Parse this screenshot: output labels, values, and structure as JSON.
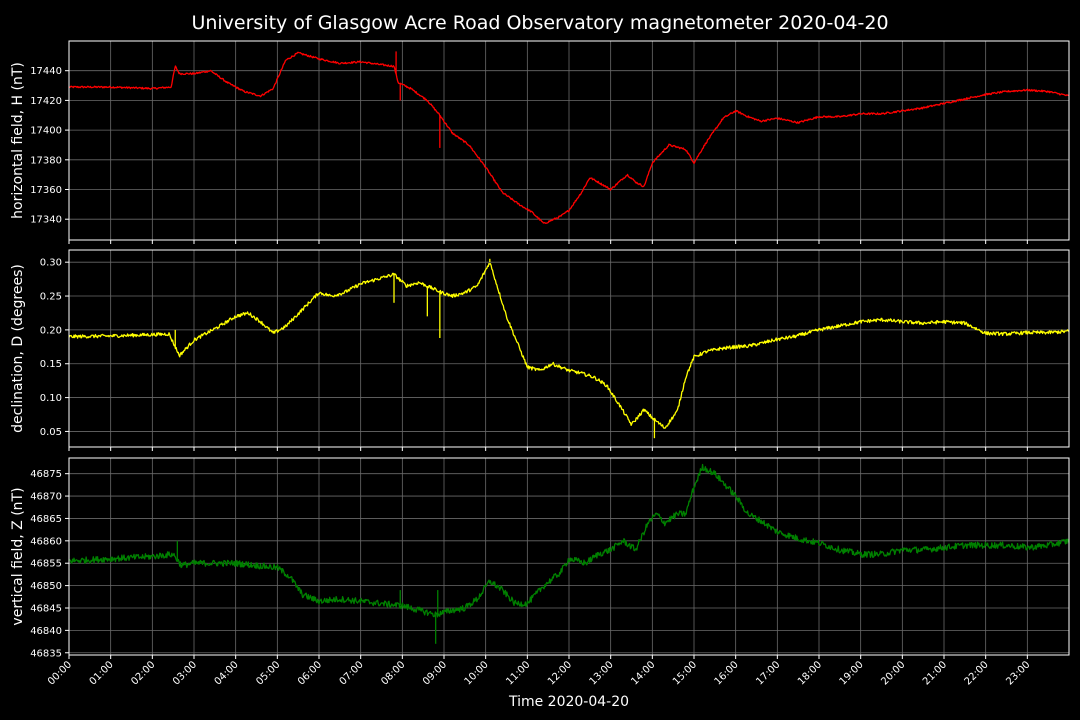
{
  "chart_data": {
    "title": "University of Glasgow Acre Road Observatory magnetometer 2020-04-20",
    "xlabel": "Time 2020-04-20",
    "type": "line",
    "grid": true,
    "x_ticks": [
      "00:00",
      "01:00",
      "02:00",
      "03:00",
      "04:00",
      "05:00",
      "06:00",
      "07:00",
      "08:00",
      "09:00",
      "10:00",
      "11:00",
      "12:00",
      "13:00",
      "14:00",
      "15:00",
      "16:00",
      "17:00",
      "18:00",
      "19:00",
      "20:00",
      "21:00",
      "22:00",
      "23:00"
    ],
    "xlim": [
      0,
      24
    ],
    "panels": [
      {
        "ylabel": "horizontal field, H (nT)",
        "color": "#ff0000",
        "ylim": [
          17326,
          17460
        ],
        "yticks": [
          17340,
          17360,
          17380,
          17400,
          17420,
          17440
        ],
        "ytick_labels": [
          "17340",
          "17360",
          "17380",
          "17400",
          "17420",
          "17440"
        ],
        "noise": 0.6,
        "spikes": [
          [
            7.85,
            17453
          ],
          [
            7.95,
            17420
          ],
          [
            8.9,
            17388
          ]
        ],
        "x": [
          0,
          1,
          2,
          2.45,
          2.55,
          2.65,
          3,
          3.4,
          3.8,
          4.2,
          4.6,
          4.9,
          5.2,
          5.5,
          6,
          6.5,
          7,
          7.5,
          7.8,
          7.9,
          8.2,
          8.6,
          8.9,
          9.2,
          9.6,
          10,
          10.4,
          10.8,
          11.1,
          11.4,
          11.8,
          12,
          12.3,
          12.5,
          12.7,
          13,
          13.4,
          13.6,
          13.8,
          14,
          14.4,
          14.8,
          15,
          15.3,
          15.7,
          16,
          16.3,
          16.6,
          17,
          17.5,
          18,
          18.5,
          19,
          19.5,
          20,
          20.5,
          21,
          21.5,
          22,
          22.5,
          23,
          23.5,
          24
        ],
        "y": [
          17429,
          17429,
          17428,
          17429,
          17443,
          17438,
          17438,
          17440,
          17432,
          17426,
          17423,
          17428,
          17447,
          17452,
          17448,
          17445,
          17446,
          17444,
          17443,
          17432,
          17428,
          17420,
          17410,
          17398,
          17390,
          17375,
          17358,
          17350,
          17345,
          17337,
          17342,
          17346,
          17358,
          17368,
          17365,
          17360,
          17370,
          17365,
          17362,
          17378,
          17390,
          17387,
          17378,
          17392,
          17408,
          17413,
          17409,
          17406,
          17408,
          17405,
          17409,
          17409,
          17411,
          17411,
          17413,
          17415,
          17418,
          17421,
          17424,
          17426,
          17427,
          17426,
          17423
        ]
      },
      {
        "ylabel": "declination, D (degrees)",
        "color": "#ffff00",
        "ylim": [
          0.027,
          0.318
        ],
        "yticks": [
          0.05,
          0.1,
          0.15,
          0.2,
          0.25,
          0.3
        ],
        "ytick_labels": [
          "0.05",
          "0.10",
          "0.15",
          "0.20",
          "0.25",
          "0.30"
        ],
        "noise": 0.0025,
        "spikes": [
          [
            2.55,
            0.2
          ],
          [
            7.8,
            0.24
          ],
          [
            8.6,
            0.22
          ],
          [
            8.9,
            0.188
          ],
          [
            10.1,
            0.305
          ],
          [
            14.05,
            0.04
          ]
        ],
        "x": [
          0,
          1,
          2,
          2.4,
          2.65,
          3,
          3.3,
          3.6,
          4,
          4.3,
          4.6,
          4.9,
          5.2,
          5.6,
          6,
          6.3,
          6.6,
          7,
          7.4,
          7.8,
          8.1,
          8.4,
          8.7,
          8.95,
          9.2,
          9.5,
          9.8,
          10.1,
          10.5,
          10.8,
          11,
          11.3,
          11.6,
          12,
          12.3,
          12.6,
          12.9,
          13.2,
          13.5,
          13.8,
          14,
          14.3,
          14.6,
          14.8,
          15,
          15.3,
          15.6,
          16,
          16.3,
          16.6,
          17,
          17.4,
          18,
          18.5,
          19,
          19.5,
          20,
          20.5,
          21,
          21.5,
          22,
          22.5,
          23,
          23.5,
          24
        ],
        "y": [
          0.19,
          0.191,
          0.193,
          0.194,
          0.162,
          0.185,
          0.195,
          0.205,
          0.22,
          0.225,
          0.212,
          0.195,
          0.205,
          0.23,
          0.255,
          0.25,
          0.255,
          0.268,
          0.275,
          0.282,
          0.265,
          0.27,
          0.262,
          0.255,
          0.25,
          0.255,
          0.265,
          0.3,
          0.22,
          0.175,
          0.145,
          0.14,
          0.15,
          0.14,
          0.136,
          0.13,
          0.118,
          0.09,
          0.06,
          0.082,
          0.07,
          0.055,
          0.08,
          0.13,
          0.16,
          0.168,
          0.172,
          0.175,
          0.176,
          0.18,
          0.186,
          0.19,
          0.2,
          0.206,
          0.212,
          0.215,
          0.212,
          0.21,
          0.212,
          0.21,
          0.195,
          0.194,
          0.196,
          0.196,
          0.198
        ]
      },
      {
        "ylabel": "vertical field, Z (nT)",
        "color": "#008000",
        "ylim": [
          46834.5,
          46878.5
        ],
        "yticks": [
          46835,
          46840,
          46845,
          46850,
          46855,
          46860,
          46865,
          46870,
          46875
        ],
        "ytick_labels": [
          "46835",
          "46840",
          "46845",
          "46850",
          "46855",
          "46860",
          "46865",
          "46870",
          "46875"
        ],
        "noise": 0.7,
        "spikes": [
          [
            2.6,
            46860
          ],
          [
            7.95,
            46849
          ],
          [
            8.8,
            46837
          ],
          [
            8.85,
            46849
          ]
        ],
        "x": [
          0,
          1,
          2,
          2.5,
          2.7,
          3,
          3.5,
          4,
          4.5,
          5,
          5.3,
          5.6,
          6,
          6.5,
          7,
          7.5,
          8,
          8.4,
          8.8,
          9.2,
          9.5,
          9.8,
          10.1,
          10.4,
          10.7,
          11,
          11.4,
          11.8,
          12,
          12.4,
          12.7,
          13,
          13.3,
          13.6,
          13.9,
          14.1,
          14.3,
          14.6,
          14.8,
          15,
          15.2,
          15.5,
          15.8,
          16,
          16.3,
          16.6,
          17,
          17.5,
          18,
          18.5,
          19,
          19.5,
          20,
          20.5,
          21,
          21.5,
          22,
          22.5,
          23,
          23.5,
          24
        ],
        "y": [
          46855.5,
          46856,
          46856.5,
          46857,
          46854.5,
          46855,
          46855,
          46855,
          46854.5,
          46854,
          46852,
          46848,
          46846.5,
          46847,
          46846.5,
          46846,
          46845.5,
          46844.5,
          46843.5,
          46844.5,
          46845,
          46847,
          46851,
          46849,
          46846,
          46846,
          46850,
          46853,
          46856,
          46855,
          46857,
          46858,
          46860,
          46858,
          46864,
          46866,
          46864,
          46866,
          46866,
          46872,
          46876.5,
          46875,
          46872,
          46870,
          46866,
          46864.5,
          46862,
          46860.5,
          46859.5,
          46858,
          46857,
          46857,
          46858,
          46858,
          46858.5,
          46859,
          46859,
          46859,
          46858.5,
          46859,
          46860
        ]
      }
    ]
  }
}
